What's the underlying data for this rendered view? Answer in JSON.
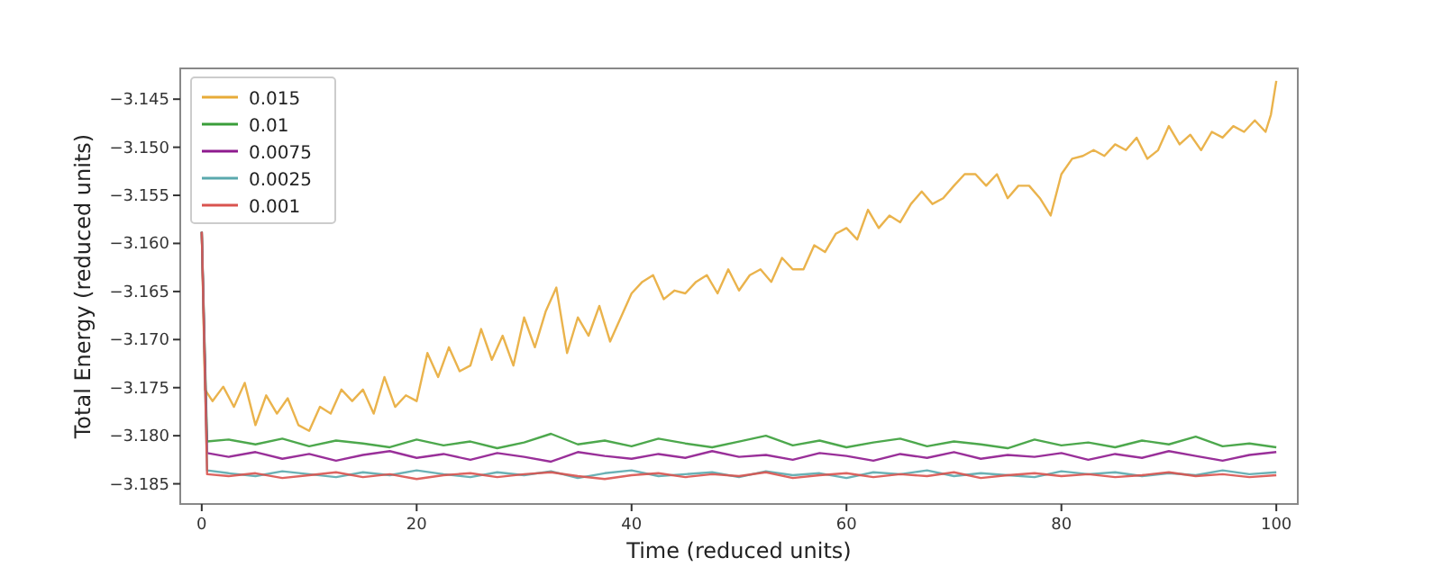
{
  "chart_data": {
    "type": "line",
    "xlabel": "Time (reduced units)",
    "ylabel": "Total Energy (reduced units)",
    "x": [
      0,
      0.5,
      2.5,
      5,
      7.5,
      10,
      12.5,
      15,
      17.5,
      20,
      22.5,
      25,
      27.5,
      30,
      32.5,
      35,
      37.5,
      40,
      42.5,
      45,
      47.5,
      50,
      52.5,
      55,
      57.5,
      60,
      62.5,
      65,
      67.5,
      70,
      72.5,
      75,
      77.5,
      80,
      82.5,
      85,
      87.5,
      90,
      92.5,
      95,
      97.5,
      100
    ],
    "xlim": [
      -2,
      102
    ],
    "xticks": [
      0,
      20,
      40,
      60,
      80,
      100
    ],
    "ylim": [
      -3.1871,
      -3.1418
    ],
    "yticks": [
      {
        "value": -3.185,
        "label": "−3.185"
      },
      {
        "value": -3.18,
        "label": "−3.180"
      },
      {
        "value": -3.175,
        "label": "−3.175"
      },
      {
        "value": -3.17,
        "label": "−3.170"
      },
      {
        "value": -3.165,
        "label": "−3.165"
      },
      {
        "value": -3.16,
        "label": "−3.160"
      },
      {
        "value": -3.155,
        "label": "−3.155"
      },
      {
        "value": -3.15,
        "label": "−3.150"
      },
      {
        "value": -3.145,
        "label": "−3.145"
      }
    ],
    "legend": "top left",
    "grid": false,
    "line_style": "solid",
    "marker": "none",
    "series": [
      {
        "name": "0.015",
        "color": "#e8ab38",
        "x": [
          0,
          0.3,
          1,
          2,
          3,
          4,
          5,
          6,
          7,
          8,
          9,
          10,
          11,
          12,
          13,
          14,
          15,
          16,
          17,
          18,
          19,
          20,
          21,
          22,
          23,
          24,
          25,
          26,
          27,
          28,
          29,
          30,
          31,
          32,
          33,
          34,
          35,
          36,
          37,
          38,
          39,
          40,
          41,
          42,
          43,
          44,
          45,
          46,
          47,
          48,
          49,
          50,
          51,
          52,
          53,
          54,
          55,
          56,
          57,
          58,
          59,
          60,
          61,
          62,
          63,
          64,
          65,
          66,
          67,
          68,
          69,
          70,
          71,
          72,
          73,
          74,
          75,
          76,
          77,
          78,
          79,
          80,
          81,
          82,
          83,
          84,
          85,
          86,
          87,
          88,
          89,
          90,
          91,
          92,
          93,
          94,
          95,
          96,
          97,
          98,
          99,
          99.5,
          100
        ],
        "values": [
          -3.1588,
          -3.1752,
          -3.1764,
          -3.1749,
          -3.177,
          -3.1745,
          -3.1789,
          -3.1758,
          -3.1777,
          -3.1761,
          -3.1789,
          -3.1795,
          -3.177,
          -3.1777,
          -3.1752,
          -3.1764,
          -3.1752,
          -3.1777,
          -3.1739,
          -3.177,
          -3.1758,
          -3.1764,
          -3.1714,
          -3.1739,
          -3.1708,
          -3.1733,
          -3.1727,
          -3.1689,
          -3.1721,
          -3.1696,
          -3.1727,
          -3.1677,
          -3.1708,
          -3.1671,
          -3.1646,
          -3.1714,
          -3.1677,
          -3.1696,
          -3.1665,
          -3.1702,
          -3.1677,
          -3.1652,
          -3.164,
          -3.1633,
          -3.1658,
          -3.1649,
          -3.1652,
          -3.164,
          -3.1633,
          -3.1652,
          -3.1627,
          -3.1649,
          -3.1633,
          -3.1627,
          -3.164,
          -3.1615,
          -3.1627,
          -3.1627,
          -3.1602,
          -3.1609,
          -3.159,
          -3.1584,
          -3.1596,
          -3.1565,
          -3.1584,
          -3.1571,
          -3.1578,
          -3.1559,
          -3.1546,
          -3.1559,
          -3.1553,
          -3.154,
          -3.1528,
          -3.1528,
          -3.154,
          -3.1528,
          -3.1553,
          -3.154,
          -3.154,
          -3.1553,
          -3.1571,
          -3.1528,
          -3.1512,
          -3.1509,
          -3.1503,
          -3.1509,
          -3.1497,
          -3.1503,
          -3.149,
          -3.1512,
          -3.1503,
          -3.1478,
          -3.1497,
          -3.1487,
          -3.1503,
          -3.1484,
          -3.149,
          -3.1478,
          -3.1484,
          -3.1472,
          -3.1484,
          -3.1466,
          -3.1431
        ]
      },
      {
        "name": "0.01",
        "color": "#3a9e3a",
        "values": [
          -3.1588,
          -3.1806,
          -3.1804,
          -3.1809,
          -3.1803,
          -3.1811,
          -3.1805,
          -3.1808,
          -3.1812,
          -3.1804,
          -3.181,
          -3.1806,
          -3.1813,
          -3.1807,
          -3.1798,
          -3.1809,
          -3.1805,
          -3.1811,
          -3.1803,
          -3.1808,
          -3.1812,
          -3.1806,
          -3.18,
          -3.181,
          -3.1805,
          -3.1812,
          -3.1807,
          -3.1803,
          -3.1811,
          -3.1806,
          -3.1809,
          -3.1813,
          -3.1804,
          -3.181,
          -3.1807,
          -3.1812,
          -3.1805,
          -3.1809,
          -3.1801,
          -3.1811,
          -3.1808,
          -3.1812
        ]
      },
      {
        "name": "0.0075",
        "color": "#8e1a8e",
        "values": [
          -3.1588,
          -3.1818,
          -3.1822,
          -3.1817,
          -3.1824,
          -3.1819,
          -3.1826,
          -3.182,
          -3.1816,
          -3.1823,
          -3.1819,
          -3.1825,
          -3.1818,
          -3.1822,
          -3.1827,
          -3.1817,
          -3.1821,
          -3.1824,
          -3.1819,
          -3.1823,
          -3.1816,
          -3.1822,
          -3.182,
          -3.1825,
          -3.1818,
          -3.1821,
          -3.1826,
          -3.1819,
          -3.1823,
          -3.1817,
          -3.1824,
          -3.182,
          -3.1822,
          -3.1818,
          -3.1825,
          -3.1819,
          -3.1823,
          -3.1816,
          -3.1821,
          -3.1826,
          -3.182,
          -3.1817
        ]
      },
      {
        "name": "0.0025",
        "color": "#5aa9ad",
        "values": [
          -3.1588,
          -3.1836,
          -3.1839,
          -3.1842,
          -3.1837,
          -3.184,
          -3.1843,
          -3.1838,
          -3.1841,
          -3.1836,
          -3.184,
          -3.1843,
          -3.1838,
          -3.1841,
          -3.1837,
          -3.1844,
          -3.1839,
          -3.1836,
          -3.1842,
          -3.184,
          -3.1838,
          -3.1843,
          -3.1837,
          -3.1841,
          -3.1839,
          -3.1844,
          -3.1838,
          -3.184,
          -3.1836,
          -3.1842,
          -3.1839,
          -3.1841,
          -3.1843,
          -3.1837,
          -3.184,
          -3.1838,
          -3.1842,
          -3.1839,
          -3.1841,
          -3.1836,
          -3.184,
          -3.1838
        ]
      },
      {
        "name": "0.001",
        "color": "#d9534f",
        "values": [
          -3.1588,
          -3.184,
          -3.1842,
          -3.1839,
          -3.1844,
          -3.1841,
          -3.1838,
          -3.1843,
          -3.184,
          -3.1845,
          -3.1841,
          -3.1839,
          -3.1843,
          -3.184,
          -3.1838,
          -3.1842,
          -3.1845,
          -3.1841,
          -3.1839,
          -3.1843,
          -3.184,
          -3.1842,
          -3.1838,
          -3.1844,
          -3.1841,
          -3.1839,
          -3.1843,
          -3.184,
          -3.1842,
          -3.1838,
          -3.1844,
          -3.1841,
          -3.1839,
          -3.1842,
          -3.184,
          -3.1843,
          -3.1841,
          -3.1838,
          -3.1842,
          -3.184,
          -3.1843,
          -3.1841
        ]
      }
    ]
  }
}
